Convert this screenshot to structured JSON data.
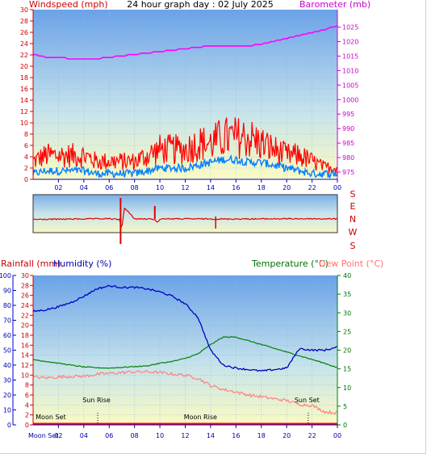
{
  "chart_data": [
    {
      "type": "line",
      "title": "24 hour graph day : 02 July 2025",
      "ylabel": "Windspeed (mph)",
      "y2label": "Barometer (mb)",
      "x_ticks": [
        "02",
        "04",
        "06",
        "08",
        "10",
        "12",
        "14",
        "16",
        "18",
        "20",
        "22",
        "00"
      ],
      "x_range_hours": [
        0,
        24
      ],
      "ylim": [
        0,
        30
      ],
      "y_ticks": [
        0,
        2,
        4,
        6,
        8,
        10,
        12,
        14,
        16,
        18,
        20,
        22,
        24,
        26,
        28,
        30
      ],
      "y2lim": [
        972.5,
        1031
      ],
      "y2_ticks": [
        975,
        980,
        985,
        990,
        995,
        1000,
        1005,
        1010,
        1015,
        1020,
        1025
      ],
      "grid": true,
      "series": [
        {
          "name": "Gust (red)",
          "color": "#ff0000",
          "x": [
            0,
            1,
            2,
            3,
            4,
            5,
            6,
            7,
            8,
            9,
            10,
            11,
            12,
            13,
            14,
            15,
            16,
            17,
            18,
            19,
            20,
            21,
            22,
            23,
            24
          ],
          "values": [
            3,
            4,
            4,
            4,
            4,
            3,
            3,
            3,
            3,
            4,
            5,
            5,
            5,
            6,
            6,
            7,
            7,
            7,
            6,
            5,
            4,
            4,
            3,
            2,
            2
          ]
        },
        {
          "name": "Wind (blue)",
          "color": "#0080ff",
          "x": [
            0,
            1,
            2,
            3,
            4,
            5,
            6,
            7,
            8,
            9,
            10,
            11,
            12,
            13,
            14,
            15,
            16,
            17,
            18,
            19,
            20,
            21,
            22,
            23,
            24
          ],
          "values": [
            1,
            1.5,
            1.5,
            1.5,
            1.5,
            1,
            1,
            1,
            1,
            1.5,
            2,
            2,
            2,
            2.5,
            3,
            3.5,
            3.5,
            3,
            3,
            2.5,
            2,
            1.5,
            1,
            1,
            1
          ]
        },
        {
          "name": "Barometer",
          "color": "#ff00ff",
          "x": [
            0,
            1,
            2,
            3,
            4,
            5,
            6,
            7,
            8,
            9,
            10,
            11,
            12,
            13,
            14,
            15,
            16,
            17,
            18,
            19,
            20,
            21,
            22,
            23,
            24
          ],
          "values": [
            1015.5,
            1014.5,
            1014.5,
            1014,
            1014,
            1014,
            1014.5,
            1015,
            1015.5,
            1016,
            1016.5,
            1017,
            1017.5,
            1018,
            1018.5,
            1018.5,
            1018.5,
            1018.5,
            1019,
            1020,
            1021,
            1022,
            1023,
            1024,
            1025.5
          ]
        }
      ]
    },
    {
      "type": "line",
      "title": "",
      "y_labels": [
        "S",
        "E",
        "N",
        "W",
        "S"
      ],
      "ylim": [
        0,
        360
      ],
      "series": [
        {
          "name": "Wind Direction",
          "color": "#e00000",
          "x": [
            0,
            2,
            4,
            6,
            6.8,
            7,
            7.2,
            8,
            9.6,
            9.8,
            10,
            12,
            14,
            15,
            16,
            18,
            20,
            22,
            24
          ],
          "values": [
            190,
            188,
            186,
            185,
            190,
            250,
            110,
            185,
            188,
            215,
            185,
            186,
            186,
            187,
            186,
            186,
            185,
            185,
            186
          ]
        }
      ]
    },
    {
      "type": "line",
      "title": "",
      "ylabel": "Rainfall (mm)",
      "ylabel2": "Humidity (%)",
      "y2label": "Temperature (°C)",
      "y2label2": "Dew Point (°C)",
      "x_ticks": [
        "02",
        "04",
        "06",
        "08",
        "10",
        "12",
        "14",
        "16",
        "18",
        "20",
        "22",
        "00"
      ],
      "x_range_hours": [
        0,
        24
      ],
      "rain_ticks": [
        0,
        2,
        4,
        6,
        8,
        10,
        12,
        14,
        16,
        18,
        20,
        22,
        24,
        26,
        28,
        30
      ],
      "humidity_ticks": [
        0,
        10,
        20,
        30,
        40,
        50,
        60,
        70,
        80,
        90,
        100
      ],
      "temp_ticks": [
        0,
        5,
        10,
        15,
        20,
        25,
        30,
        35,
        40
      ],
      "rain_lim": [
        0,
        30
      ],
      "humidity_lim": [
        0,
        100
      ],
      "temp_lim": [
        0,
        40
      ],
      "grid": true,
      "annotations": [
        "Moon Set",
        "Sun Rise",
        "Moon Rise",
        "Sun Set"
      ],
      "annotation_bottom": "Moon Set",
      "series": [
        {
          "name": "Humidity",
          "color": "#0000c0",
          "axis": "humidity",
          "x": [
            0,
            1,
            2,
            3,
            4,
            5,
            6,
            7,
            8,
            9,
            10,
            11,
            12,
            13,
            14,
            15,
            16,
            17,
            18,
            19,
            20,
            21,
            22,
            23,
            24
          ],
          "values": [
            76,
            77,
            79,
            82,
            86,
            91,
            93,
            92,
            92,
            91,
            89,
            86,
            81,
            72,
            50,
            40,
            38,
            37,
            36,
            37,
            38,
            51,
            50,
            50,
            52
          ]
        },
        {
          "name": "Temperature",
          "color": "#008000",
          "axis": "temp",
          "x": [
            0,
            1,
            2,
            3,
            4,
            5,
            6,
            7,
            8,
            9,
            10,
            11,
            12,
            13,
            14,
            15,
            16,
            17,
            18,
            19,
            20,
            21,
            22,
            23,
            24
          ],
          "values": [
            17.5,
            17,
            16.5,
            16,
            15.5,
            15.3,
            15.2,
            15.4,
            15.6,
            15.8,
            16.5,
            17,
            17.8,
            19,
            21.5,
            23.5,
            23.5,
            22.5,
            21.5,
            20.5,
            19.5,
            18.5,
            17.5,
            16.5,
            15.3
          ]
        },
        {
          "name": "Dew Point",
          "color": "#ff8080",
          "axis": "temp",
          "x": [
            0,
            1,
            2,
            3,
            4,
            5,
            6,
            7,
            8,
            9,
            10,
            11,
            12,
            13,
            14,
            15,
            16,
            17,
            18,
            19,
            20,
            21,
            22,
            23,
            24
          ],
          "values": [
            12.8,
            12.6,
            12.8,
            13,
            13,
            13.5,
            13.8,
            14,
            14.2,
            14.2,
            14,
            13.6,
            13.3,
            12.5,
            10.5,
            9.5,
            8.8,
            8,
            7.5,
            7,
            6.5,
            5.5,
            5.2,
            3.5,
            3.2
          ]
        },
        {
          "name": "Rainfall",
          "color": "#ff0000",
          "axis": "rain",
          "x": [
            0,
            24
          ],
          "values": [
            0,
            0
          ]
        }
      ]
    }
  ]
}
